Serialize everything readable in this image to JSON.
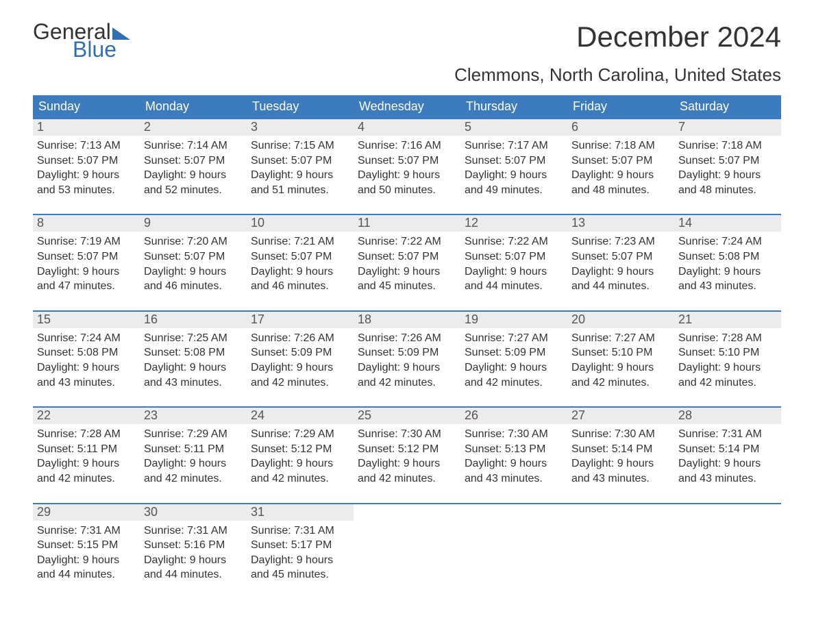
{
  "brand": {
    "word1": "General",
    "word2": "Blue",
    "flag_color": "#2f6fb3"
  },
  "title": "December 2024",
  "location": "Clemmons, North Carolina, United States",
  "colors": {
    "header_bg": "#3c7bbd",
    "header_text": "#ffffff",
    "daynum_bg": "#ececec",
    "text": "#333333",
    "accent": "#2f6fb3",
    "row_border": "#3c7bbd",
    "background": "#ffffff"
  },
  "typography": {
    "title_fontsize": 42,
    "location_fontsize": 26,
    "header_fontsize": 18,
    "daynum_fontsize": 18,
    "body_fontsize": 16
  },
  "day_headers": [
    "Sunday",
    "Monday",
    "Tuesday",
    "Wednesday",
    "Thursday",
    "Friday",
    "Saturday"
  ],
  "label_sunrise": "Sunrise:",
  "label_sunset": "Sunset:",
  "label_daylight": "Daylight:",
  "weeks": [
    [
      {
        "n": "1",
        "sunrise": "7:13 AM",
        "sunset": "5:07 PM",
        "daylight": "9 hours and 53 minutes."
      },
      {
        "n": "2",
        "sunrise": "7:14 AM",
        "sunset": "5:07 PM",
        "daylight": "9 hours and 52 minutes."
      },
      {
        "n": "3",
        "sunrise": "7:15 AM",
        "sunset": "5:07 PM",
        "daylight": "9 hours and 51 minutes."
      },
      {
        "n": "4",
        "sunrise": "7:16 AM",
        "sunset": "5:07 PM",
        "daylight": "9 hours and 50 minutes."
      },
      {
        "n": "5",
        "sunrise": "7:17 AM",
        "sunset": "5:07 PM",
        "daylight": "9 hours and 49 minutes."
      },
      {
        "n": "6",
        "sunrise": "7:18 AM",
        "sunset": "5:07 PM",
        "daylight": "9 hours and 48 minutes."
      },
      {
        "n": "7",
        "sunrise": "7:18 AM",
        "sunset": "5:07 PM",
        "daylight": "9 hours and 48 minutes."
      }
    ],
    [
      {
        "n": "8",
        "sunrise": "7:19 AM",
        "sunset": "5:07 PM",
        "daylight": "9 hours and 47 minutes."
      },
      {
        "n": "9",
        "sunrise": "7:20 AM",
        "sunset": "5:07 PM",
        "daylight": "9 hours and 46 minutes."
      },
      {
        "n": "10",
        "sunrise": "7:21 AM",
        "sunset": "5:07 PM",
        "daylight": "9 hours and 46 minutes."
      },
      {
        "n": "11",
        "sunrise": "7:22 AM",
        "sunset": "5:07 PM",
        "daylight": "9 hours and 45 minutes."
      },
      {
        "n": "12",
        "sunrise": "7:22 AM",
        "sunset": "5:07 PM",
        "daylight": "9 hours and 44 minutes."
      },
      {
        "n": "13",
        "sunrise": "7:23 AM",
        "sunset": "5:07 PM",
        "daylight": "9 hours and 44 minutes."
      },
      {
        "n": "14",
        "sunrise": "7:24 AM",
        "sunset": "5:08 PM",
        "daylight": "9 hours and 43 minutes."
      }
    ],
    [
      {
        "n": "15",
        "sunrise": "7:24 AM",
        "sunset": "5:08 PM",
        "daylight": "9 hours and 43 minutes."
      },
      {
        "n": "16",
        "sunrise": "7:25 AM",
        "sunset": "5:08 PM",
        "daylight": "9 hours and 43 minutes."
      },
      {
        "n": "17",
        "sunrise": "7:26 AM",
        "sunset": "5:09 PM",
        "daylight": "9 hours and 42 minutes."
      },
      {
        "n": "18",
        "sunrise": "7:26 AM",
        "sunset": "5:09 PM",
        "daylight": "9 hours and 42 minutes."
      },
      {
        "n": "19",
        "sunrise": "7:27 AM",
        "sunset": "5:09 PM",
        "daylight": "9 hours and 42 minutes."
      },
      {
        "n": "20",
        "sunrise": "7:27 AM",
        "sunset": "5:10 PM",
        "daylight": "9 hours and 42 minutes."
      },
      {
        "n": "21",
        "sunrise": "7:28 AM",
        "sunset": "5:10 PM",
        "daylight": "9 hours and 42 minutes."
      }
    ],
    [
      {
        "n": "22",
        "sunrise": "7:28 AM",
        "sunset": "5:11 PM",
        "daylight": "9 hours and 42 minutes."
      },
      {
        "n": "23",
        "sunrise": "7:29 AM",
        "sunset": "5:11 PM",
        "daylight": "9 hours and 42 minutes."
      },
      {
        "n": "24",
        "sunrise": "7:29 AM",
        "sunset": "5:12 PM",
        "daylight": "9 hours and 42 minutes."
      },
      {
        "n": "25",
        "sunrise": "7:30 AM",
        "sunset": "5:12 PM",
        "daylight": "9 hours and 42 minutes."
      },
      {
        "n": "26",
        "sunrise": "7:30 AM",
        "sunset": "5:13 PM",
        "daylight": "9 hours and 43 minutes."
      },
      {
        "n": "27",
        "sunrise": "7:30 AM",
        "sunset": "5:14 PM",
        "daylight": "9 hours and 43 minutes."
      },
      {
        "n": "28",
        "sunrise": "7:31 AM",
        "sunset": "5:14 PM",
        "daylight": "9 hours and 43 minutes."
      }
    ],
    [
      {
        "n": "29",
        "sunrise": "7:31 AM",
        "sunset": "5:15 PM",
        "daylight": "9 hours and 44 minutes."
      },
      {
        "n": "30",
        "sunrise": "7:31 AM",
        "sunset": "5:16 PM",
        "daylight": "9 hours and 44 minutes."
      },
      {
        "n": "31",
        "sunrise": "7:31 AM",
        "sunset": "5:17 PM",
        "daylight": "9 hours and 45 minutes."
      },
      null,
      null,
      null,
      null
    ]
  ]
}
